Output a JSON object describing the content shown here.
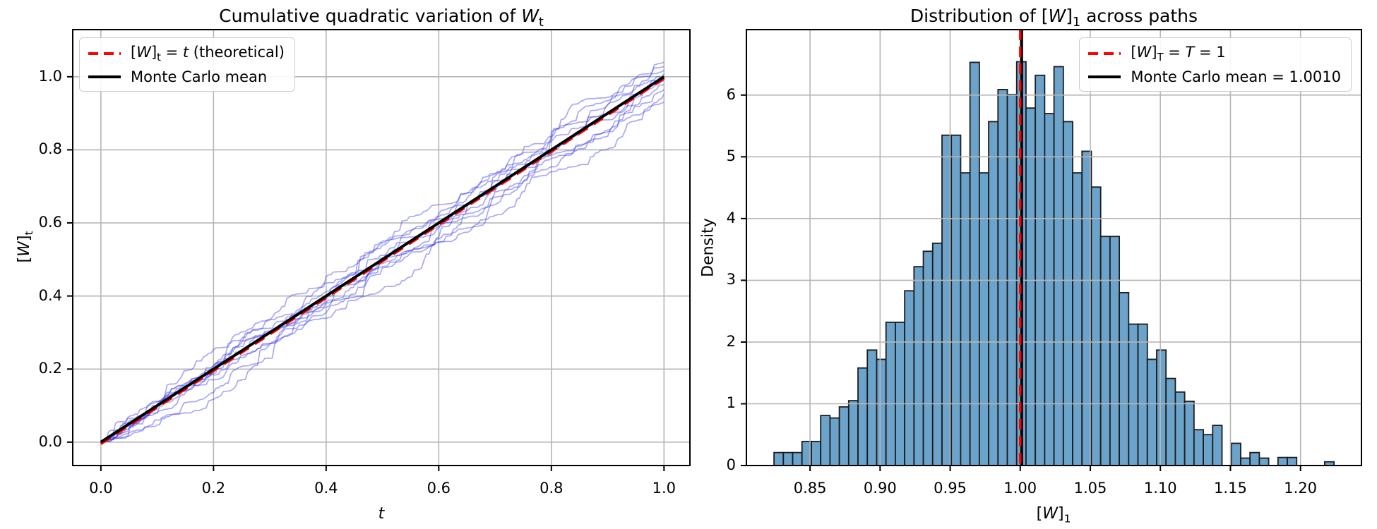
{
  "figure": {
    "background": "#ffffff"
  },
  "colors": {
    "grid": "#b6b6b6",
    "spine": "#000000",
    "path_blue": "rgba(40,40,235,0.40)",
    "mean_black": "#000000",
    "theory_red": "#ff0000",
    "bar_fill": "#6BA3CB",
    "bar_edge": "#1c1c1c"
  },
  "chart_data": [
    {
      "type": "line",
      "title": "Cumulative quadratic variation of $W$_{t}",
      "xlabel": "$t$",
      "ylabel": "[$W$]_{t}",
      "xlim": [
        -0.05,
        1.046
      ],
      "ylim": [
        -0.064,
        1.129
      ],
      "grid": true,
      "xticks": {
        "values": [
          0.0,
          0.2,
          0.4,
          0.6,
          0.8,
          1.0
        ],
        "labels": [
          "0.0",
          "0.2",
          "0.4",
          "0.6",
          "0.8",
          "1.0"
        ]
      },
      "yticks": {
        "values": [
          0.0,
          0.2,
          0.4,
          0.6,
          0.8,
          1.0
        ],
        "labels": [
          "0.0",
          "0.2",
          "0.4",
          "0.6",
          "0.8",
          "1.0"
        ]
      },
      "legend": {
        "position": "upper left",
        "entries": [
          {
            "label": "[$W$]_{t} = $t$ (theoretical)",
            "style": "red-dashed"
          },
          {
            "label": "Monte Carlo mean",
            "style": "black-solid"
          }
        ]
      },
      "series": [
        {
          "name": "theoretical",
          "x": [
            0,
            1
          ],
          "y": [
            0,
            1
          ],
          "color": "#ff0000",
          "dashed": true
        },
        {
          "name": "monte_carlo_mean",
          "x": [
            0,
            1
          ],
          "y": [
            0,
            1.0
          ],
          "color": "#000000",
          "dashed": false
        },
        {
          "name": "sample_paths",
          "count": 10,
          "color": "rgba(40,40,235,0.40)",
          "shape": "increasing-jagged",
          "final_values": [
            0.93,
            0.952,
            0.965,
            0.978,
            0.99,
            1.0,
            1.008,
            1.018,
            1.028,
            1.04
          ]
        }
      ]
    },
    {
      "type": "bar",
      "subtype": "histogram-density",
      "title": "Distribution of [$W$]_{1} across paths",
      "xlabel": "[$W$]_{1}",
      "ylabel": "Density",
      "xlim": [
        0.8046,
        1.2435
      ],
      "ylim": [
        0,
        7.06
      ],
      "grid": true,
      "xticks": {
        "values": [
          0.85,
          0.9,
          0.95,
          1.0,
          1.05,
          1.1,
          1.15,
          1.2
        ],
        "labels": [
          "0.85",
          "0.90",
          "0.95",
          "1.00",
          "1.05",
          "1.10",
          "1.15",
          "1.20"
        ]
      },
      "yticks": {
        "values": [
          0,
          1,
          2,
          3,
          4,
          5,
          6
        ],
        "labels": [
          "0",
          "1",
          "2",
          "3",
          "4",
          "5",
          "6"
        ]
      },
      "bin_start": 0.8243,
      "bin_width": 0.00666,
      "densities": [
        0.21,
        0.21,
        0.21,
        0.39,
        0.39,
        0.81,
        0.77,
        0.95,
        1.05,
        1.58,
        1.87,
        1.72,
        2.32,
        2.32,
        2.83,
        3.22,
        3.47,
        3.6,
        5.35,
        5.35,
        4.74,
        6.53,
        4.74,
        5.57,
        6.09,
        6.01,
        6.54,
        5.79,
        6.32,
        5.7,
        6.46,
        5.57,
        4.74,
        5.09,
        4.51,
        3.71,
        3.71,
        2.8,
        2.29,
        2.29,
        1.72,
        1.87,
        1.41,
        1.19,
        1.04,
        0.58,
        0.5,
        0.65,
        0,
        0.36,
        0.12,
        0.21,
        0.12,
        0,
        0.13,
        0.13,
        0,
        0,
        0,
        0.06
      ],
      "vlines": [
        {
          "value": 1.0,
          "color": "#ff0000",
          "dashed": true
        },
        {
          "value": 1.001,
          "color": "#000000",
          "dashed": false
        }
      ],
      "legend": {
        "position": "upper right",
        "entries": [
          {
            "label": "[$W$]_{T} = $T$ = 1",
            "style": "red-dashed"
          },
          {
            "label": "Monte Carlo mean = 1.0010",
            "style": "black-solid"
          }
        ]
      }
    }
  ]
}
